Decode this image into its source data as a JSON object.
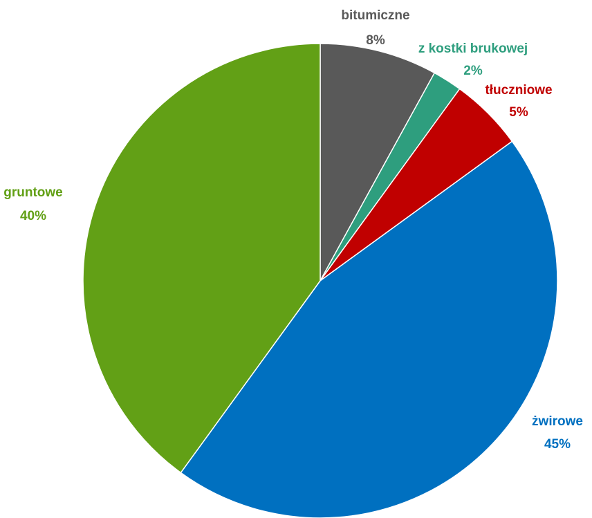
{
  "chart_data": {
    "type": "pie",
    "title": "",
    "start_angle_deg": 0,
    "direction": "clockwise",
    "slices": [
      {
        "label": "bitumiczne",
        "value": 8,
        "value_label": "8%",
        "color": "#595959"
      },
      {
        "label": "z kostki brukowej",
        "value": 2,
        "value_label": "2%",
        "color": "#2E9E7E"
      },
      {
        "label": "tłuczniowe",
        "value": 5,
        "value_label": "5%",
        "color": "#C00000"
      },
      {
        "label": "żwirowe",
        "value": 45,
        "value_label": "45%",
        "color": "#0070C0"
      },
      {
        "label": "gruntowe",
        "value": 40,
        "value_label": "40%",
        "color": "#62A016"
      }
    ]
  }
}
